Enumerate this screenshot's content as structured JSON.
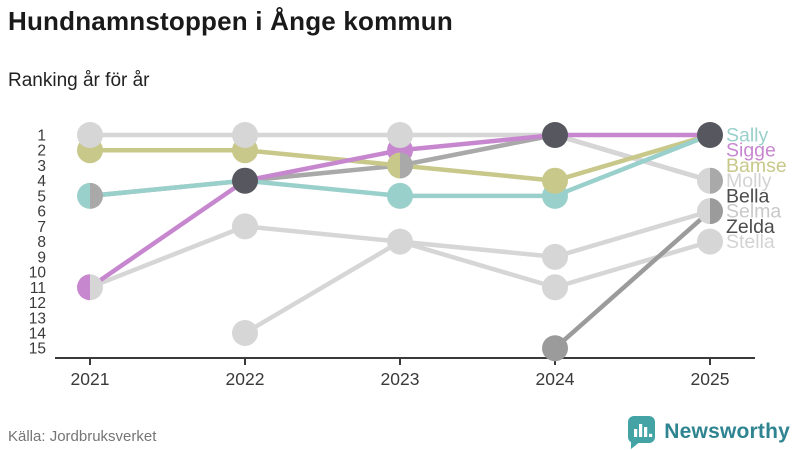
{
  "header": {
    "title": "Hundnamnstoppen i Ånge kommun",
    "subtitle": "Ranking år för år"
  },
  "chart_data": {
    "type": "line",
    "subtype": "bump-ranking",
    "title": "Hundnamnstoppen i Ånge kommun",
    "subtitle": "Ranking år för år",
    "x": [
      2021,
      2022,
      2023,
      2024,
      2025
    ],
    "y_axis": {
      "min": 1,
      "max": 15,
      "inverted": true,
      "ticks": [
        1,
        2,
        3,
        4,
        5,
        6,
        7,
        8,
        9,
        10,
        11,
        12,
        13,
        14,
        15
      ]
    },
    "grid": false,
    "legend_position": "right-of-last-point",
    "axis_color": "#3a3a3a",
    "tie_color": "#57575f",
    "series": [
      {
        "name": "Sally",
        "color": "#9ad0cb",
        "label_color": "#9ad0cb",
        "label_row": 1,
        "values": [
          5,
          4,
          5,
          5,
          1
        ]
      },
      {
        "name": "Sigge",
        "color": "#c787cf",
        "label_color": "#c787cf",
        "label_row": 2,
        "values": [
          11,
          4,
          2,
          1,
          1
        ]
      },
      {
        "name": "Bamse",
        "color": "#c8c88a",
        "label_color": "#c8c88a",
        "label_row": 3,
        "values": [
          2,
          2,
          3,
          4,
          1
        ]
      },
      {
        "name": "Molly",
        "color": "#d6d6d6",
        "label_color": "#d3d3d3",
        "label_row": 4,
        "values": [
          1,
          1,
          1,
          1,
          4
        ]
      },
      {
        "name": "Bella",
        "color": "#a9a9a9",
        "label_color": "#4d4d4d",
        "label_row": 5,
        "values": [
          5,
          4,
          3,
          1,
          4
        ]
      },
      {
        "name": "Selma",
        "color": "#d6d6d6",
        "label_color": "#c9c9c9",
        "label_row": 6,
        "values": [
          null,
          14,
          8,
          9,
          6
        ]
      },
      {
        "name": "Zelda",
        "color": "#9b9b9b",
        "label_color": "#4d4d4d",
        "label_row": 7,
        "values": [
          null,
          null,
          null,
          15,
          6
        ]
      },
      {
        "name": "Stella",
        "color": "#d6d6d6",
        "label_color": "#d3d3d3",
        "label_row": 8,
        "values": [
          11,
          7,
          8,
          11,
          8
        ]
      }
    ]
  },
  "footer": {
    "source": "Källa: Jordbruksverket",
    "brand": "Newsworthy",
    "brand_color": "#2e8490",
    "icon_color": "#43a3a5"
  }
}
